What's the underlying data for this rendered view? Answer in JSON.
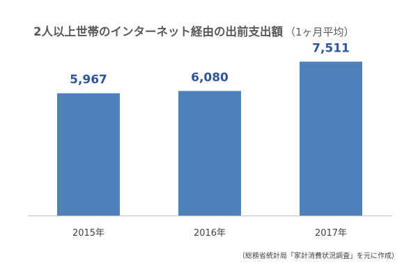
{
  "chart_data": {
    "type": "bar",
    "title": "2人以上世帯のインターネット経由の出前支出額",
    "subtitle": "（1ヶ月平均）",
    "categories": [
      "2015年",
      "2016年",
      "2017年"
    ],
    "values": [
      5967,
      6080,
      7511
    ],
    "value_labels": [
      "5,967",
      "6,080",
      "7,511"
    ],
    "ylim": [
      0,
      8000
    ],
    "grid": false,
    "legend": "none",
    "bar_color": "#4f81bd",
    "label_color": "#2f5597",
    "annotation": "（総務省統計局「家計消費状況調査」を元に作成）"
  }
}
